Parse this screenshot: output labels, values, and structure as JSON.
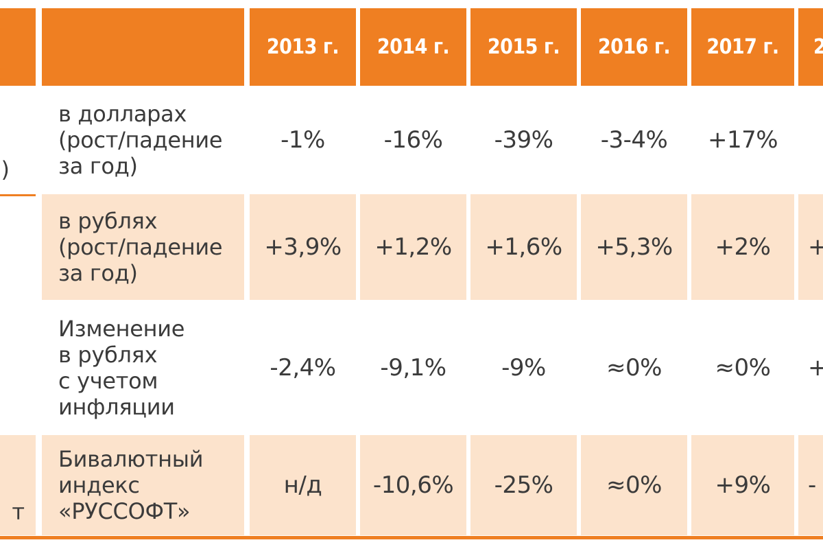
{
  "header": {
    "years": [
      "2013 г.",
      "2014 г.",
      "2015 г.",
      "2016 г.",
      "2017 г.",
      "2"
    ]
  },
  "left_fragments": {
    "row1": ")",
    "row4": "т"
  },
  "rows": [
    {
      "label": "в долларах\n(рост/падение\nза год)",
      "values": [
        "-1%",
        "-16%",
        "-39%",
        "-3-4%",
        "+17%",
        ""
      ]
    },
    {
      "label": "в рублях\n(рост/падение\nза год)",
      "values": [
        "+3,9%",
        "+1,2%",
        "+1,6%",
        "+5,3%",
        "+2%",
        "+"
      ]
    },
    {
      "label": "Изменение\nв рублях\nс учетом\nинфляции",
      "values": [
        "-2,4%",
        "-9,1%",
        "-9%",
        "≈0%",
        "≈0%",
        "+"
      ]
    },
    {
      "label": "Бивалютный\nиндекс\n«РУССОФТ»",
      "values": [
        "н/д",
        "-10,6%",
        "-25%",
        "≈0%",
        "+9%",
        "-"
      ]
    }
  ]
}
